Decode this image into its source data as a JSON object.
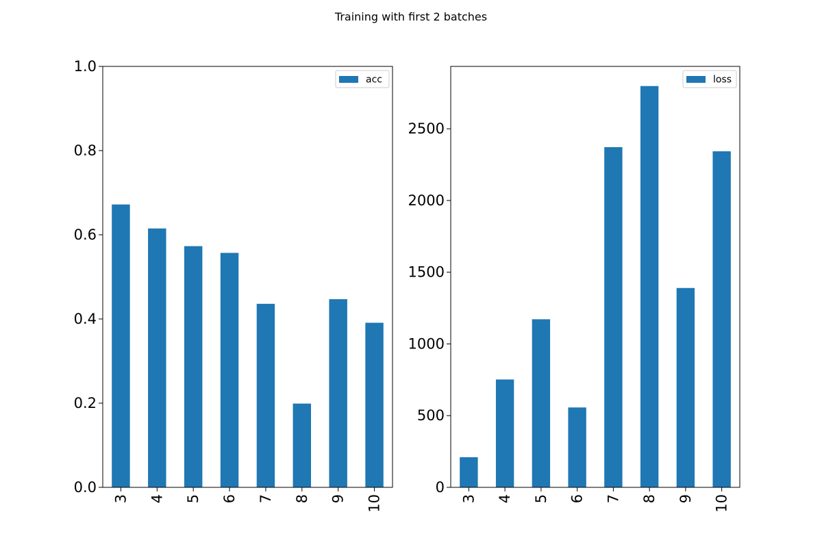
{
  "figure": {
    "title": "Training with first 2 batches"
  },
  "chart_data": [
    {
      "type": "bar",
      "categories": [
        "3",
        "4",
        "5",
        "6",
        "7",
        "8",
        "9",
        "10"
      ],
      "series": [
        {
          "name": "acc",
          "values": [
            0.672,
            0.615,
            0.573,
            0.557,
            0.436,
            0.199,
            0.447,
            0.391
          ],
          "color": "#1f77b4"
        }
      ],
      "ylim": [
        0,
        1.0
      ],
      "yticks": [
        0.0,
        0.2,
        0.4,
        0.6,
        0.8,
        1.0
      ],
      "ytick_labels": [
        "0.0",
        "0.2",
        "0.4",
        "0.6",
        "0.8",
        "1.0"
      ],
      "xlabel": "",
      "ylabel": "",
      "legend_position": "top-right",
      "grid": false
    },
    {
      "type": "bar",
      "categories": [
        "3",
        "4",
        "5",
        "6",
        "7",
        "8",
        "9",
        "10"
      ],
      "series": [
        {
          "name": "loss",
          "values": [
            210,
            752,
            1172,
            557,
            2372,
            2798,
            1390,
            2343
          ],
          "color": "#1f77b4"
        }
      ],
      "ylim": [
        0,
        2935
      ],
      "yticks": [
        0,
        500,
        1000,
        1500,
        2000,
        2500
      ],
      "ytick_labels": [
        "0",
        "500",
        "1000",
        "1500",
        "2000",
        "2500"
      ],
      "xlabel": "",
      "ylabel": "",
      "legend_position": "top-right",
      "grid": false
    }
  ]
}
